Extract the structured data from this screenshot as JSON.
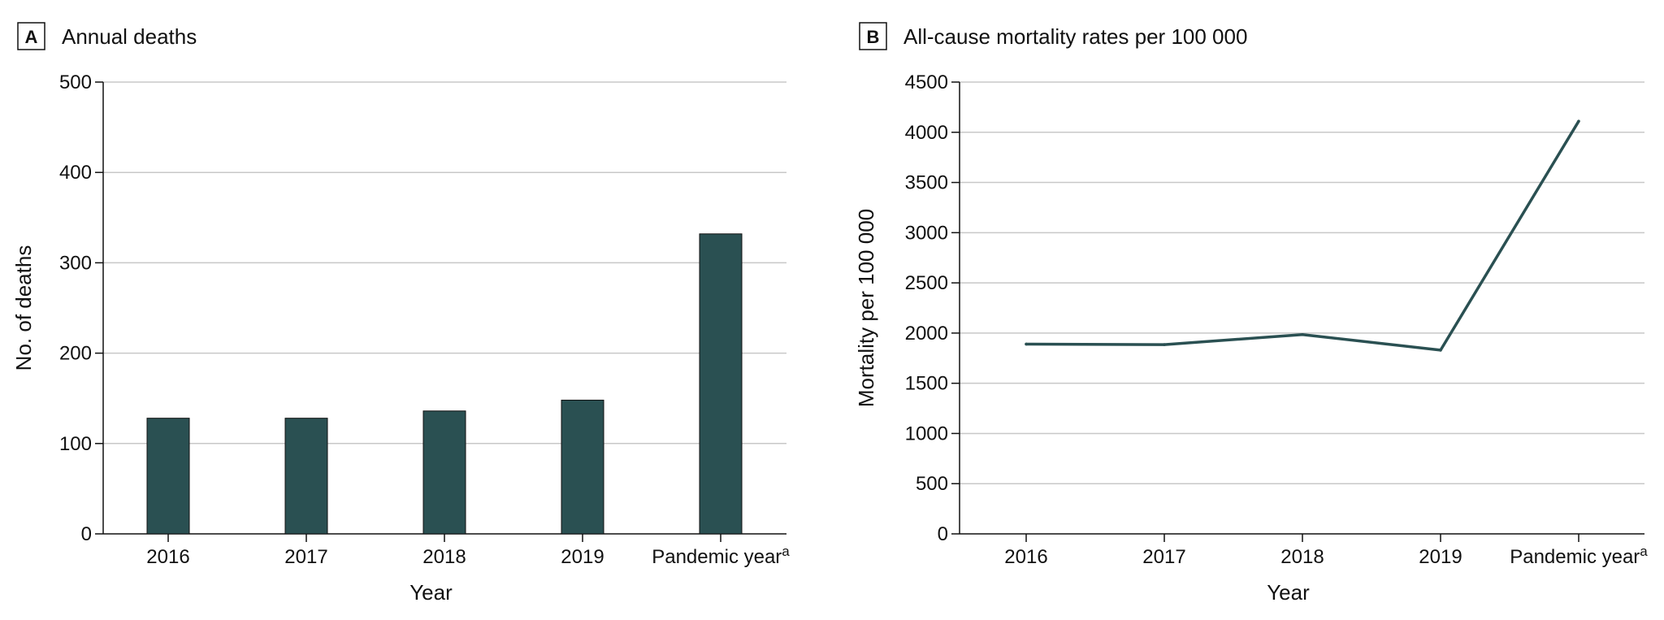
{
  "chart_data": [
    {
      "panel": "A",
      "type": "bar",
      "title": "Annual deaths",
      "categories": [
        "2016",
        "2017",
        "2018",
        "2019",
        "Pandemic year"
      ],
      "category_superscripts": [
        "",
        "",
        "",
        "",
        "a"
      ],
      "values": [
        128,
        128,
        136,
        148,
        332
      ],
      "xlabel": "Year",
      "ylabel": "No. of deaths",
      "ylim": [
        0,
        500
      ],
      "yticks": [
        0,
        100,
        200,
        300,
        400,
        500
      ],
      "grid": true,
      "color": "#2a5052"
    },
    {
      "panel": "B",
      "type": "line",
      "title": "All-cause mortality rates per 100 000",
      "categories": [
        "2016",
        "2017",
        "2018",
        "2019",
        "Pandemic year"
      ],
      "category_superscripts": [
        "",
        "",
        "",
        "",
        "a"
      ],
      "values": [
        1890,
        1885,
        1985,
        1830,
        4110
      ],
      "xlabel": "Year",
      "ylabel": "Mortality per 100 000",
      "ylim": [
        0,
        4500
      ],
      "yticks": [
        0,
        500,
        1000,
        1500,
        2000,
        2500,
        3000,
        3500,
        4000,
        4500
      ],
      "grid": true,
      "color": "#2a5052"
    }
  ]
}
